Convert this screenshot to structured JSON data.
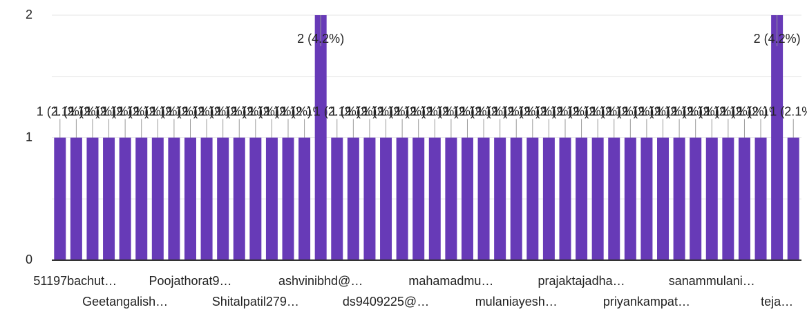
{
  "chart_data": {
    "type": "bar",
    "categories": [
      "51197bachut…",
      null,
      null,
      null,
      "Geetangalish…",
      null,
      null,
      null,
      "Poojathorat9…",
      null,
      null,
      null,
      "Shitalpatil279…",
      null,
      null,
      null,
      "ashvinibhd@…",
      null,
      null,
      null,
      "ds9409225@…",
      null,
      null,
      null,
      "mahamadmu…",
      null,
      null,
      null,
      "mulaniayesh…",
      null,
      null,
      null,
      "prajaktajadha…",
      null,
      null,
      null,
      "priyankampat…",
      null,
      null,
      null,
      "sanammulani…",
      null,
      null,
      null,
      "teja…",
      null
    ],
    "values": [
      1,
      1,
      1,
      1,
      1,
      1,
      1,
      1,
      1,
      1,
      1,
      1,
      1,
      1,
      1,
      1,
      2,
      1,
      1,
      1,
      1,
      1,
      1,
      1,
      1,
      1,
      1,
      1,
      1,
      1,
      1,
      1,
      1,
      1,
      1,
      1,
      1,
      1,
      1,
      1,
      1,
      1,
      1,
      1,
      2,
      1
    ],
    "value_labels": [
      "1 (2.1%)",
      "1 (2.1%)",
      "1 (2.1%)",
      "1 (2.1%)",
      "1 (2.1%)",
      "1 (2.1%)",
      "1 (2.1%)",
      "1 (2.1%)",
      "1 (2.1%)",
      "1 (2.1%)",
      "1 (2.1%)",
      "1 (2.1%)",
      "1 (2.1%)",
      "1 (2.1%)",
      "1 (2.1%)",
      "1 (2.1%)",
      "2 (4.2%)",
      "1 (2.1%)",
      "1 (2.1%)",
      "1 (2.1%)",
      "1 (2.1%)",
      "1 (2.1%)",
      "1 (2.1%)",
      "1 (2.1%)",
      "1 (2.1%)",
      "1 (2.1%)",
      "1 (2.1%)",
      "1 (2.1%)",
      "1 (2.1%)",
      "1 (2.1%)",
      "1 (2.1%)",
      "1 (2.1%)",
      "1 (2.1%)",
      "1 (2.1%)",
      "1 (2.1%)",
      "1 (2.1%)",
      "1 (2.1%)",
      "1 (2.1%)",
      "1 (2.1%)",
      "1 (2.1%)",
      "1 (2.1%)",
      "1 (2.1%)",
      "1 (2.1%)",
      "1 (2.1%)",
      "2 (4.2%)",
      "1 (2.1%)"
    ],
    "color": "#673ab7",
    "ylim": [
      0,
      2
    ],
    "yticks": [
      0,
      1,
      2
    ],
    "minor_yticks": [
      0.5,
      1.5
    ],
    "grid": true
  }
}
